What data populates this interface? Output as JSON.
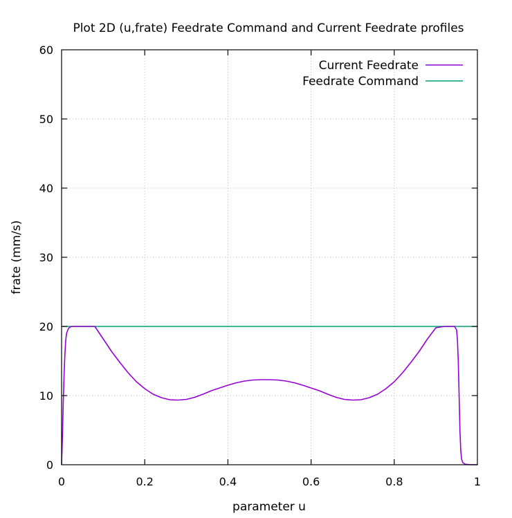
{
  "chart_data": {
    "type": "line",
    "title": "Plot 2D (u,frate) Feedrate Command and Current Feedrate profiles",
    "xlabel": "parameter u",
    "ylabel": "frate (mm/s)",
    "xlim": [
      0,
      1
    ],
    "ylim": [
      0,
      60
    ],
    "xticks": [
      0,
      0.2,
      0.4,
      0.6,
      0.8,
      1
    ],
    "xtick_labels": [
      "0",
      "0.2",
      "0.4",
      "0.6",
      "0.8",
      "1"
    ],
    "yticks": [
      0,
      10,
      20,
      30,
      40,
      50,
      60
    ],
    "ytick_labels": [
      "0",
      "10",
      "20",
      "30",
      "40",
      "50",
      "60"
    ],
    "grid": true,
    "legend_position": "top-right",
    "series": [
      {
        "name": "Current Feedrate",
        "color": "#9400d3",
        "x": [
          0,
          0.002,
          0.004,
          0.006,
          0.008,
          0.01,
          0.012,
          0.015,
          0.018,
          0.022,
          0.026,
          0.03,
          0.08,
          0.1,
          0.12,
          0.14,
          0.16,
          0.18,
          0.2,
          0.22,
          0.24,
          0.26,
          0.28,
          0.3,
          0.32,
          0.34,
          0.36,
          0.38,
          0.4,
          0.42,
          0.44,
          0.46,
          0.48,
          0.5,
          0.52,
          0.54,
          0.56,
          0.58,
          0.6,
          0.62,
          0.64,
          0.66,
          0.68,
          0.7,
          0.72,
          0.74,
          0.76,
          0.78,
          0.8,
          0.82,
          0.84,
          0.86,
          0.88,
          0.9,
          0.92,
          0.945,
          0.95,
          0.952,
          0.954,
          0.956,
          0.958,
          0.96,
          0.962,
          0.965,
          0.97,
          0.975,
          0.98,
          1.0
        ],
        "y": [
          0,
          4,
          9,
          13,
          16,
          18,
          19,
          19.5,
          19.8,
          19.95,
          20,
          20,
          20,
          18.2,
          16.4,
          14.8,
          13.3,
          12.0,
          11.0,
          10.2,
          9.7,
          9.4,
          9.35,
          9.45,
          9.75,
          10.2,
          10.7,
          11.1,
          11.5,
          11.85,
          12.1,
          12.25,
          12.3,
          12.3,
          12.25,
          12.1,
          11.85,
          11.5,
          11.1,
          10.7,
          10.2,
          9.75,
          9.45,
          9.35,
          9.4,
          9.7,
          10.2,
          11.0,
          12.0,
          13.3,
          14.8,
          16.4,
          18.2,
          19.8,
          20,
          20,
          19.5,
          18,
          15,
          10,
          5,
          2,
          0.8,
          0.3,
          0.1,
          0.05,
          0.02,
          0
        ]
      },
      {
        "name": "Feedrate Command",
        "color": "#009e73",
        "x": [
          0,
          1
        ],
        "y": [
          20,
          20
        ]
      }
    ]
  }
}
